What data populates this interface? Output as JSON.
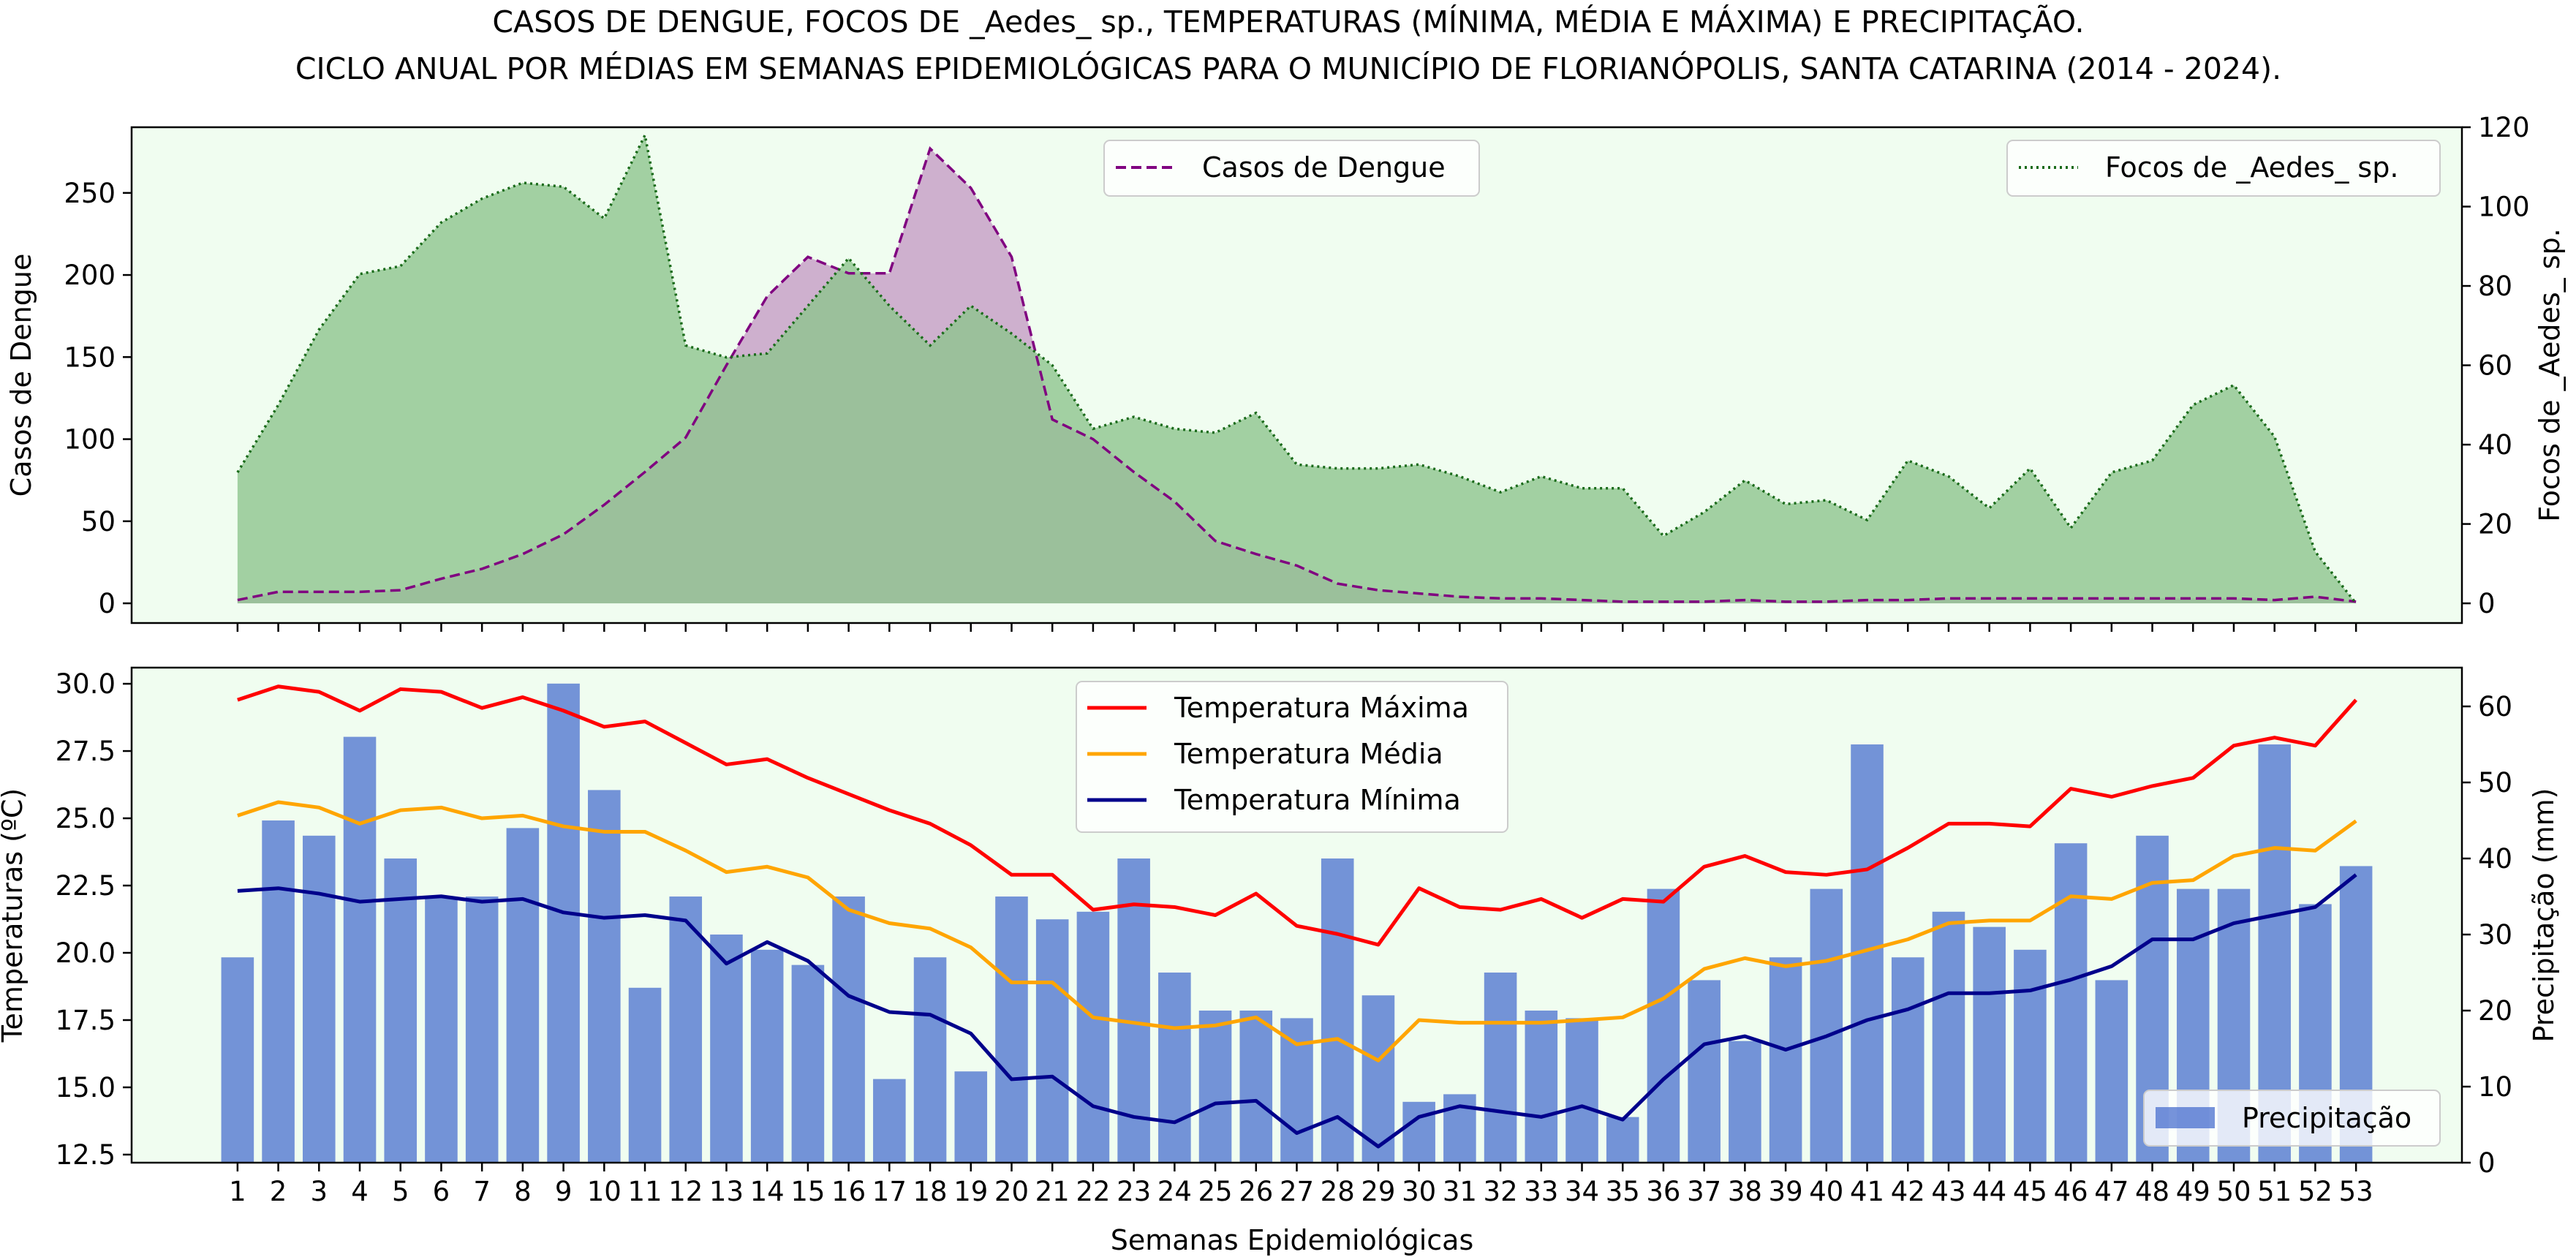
{
  "title_lines": [
    "CASOS DE DENGUE, FOCOS DE _Aedes_ sp., TEMPERATURAS (MÍNIMA, MÉDIA E MÁXIMA) E PRECIPITAÇÃO.",
    "CICLO ANUAL POR MÉDIAS EM SEMANAS EPIDEMIOLÓGICAS PARA O MUNICÍPIO DE FLORIANÓPOLIS, SANTA CATARINA (2014 - 2024)."
  ],
  "colors": {
    "panel_bg": "#f0fdf0",
    "dengue": "#800080",
    "dengue_fill": "#c8a2c8",
    "aedes": "#1a6b1a",
    "aedes_fill": "#8fc48f",
    "tmax": "#ff0000",
    "tmed": "#ffa500",
    "tmin": "#00008b",
    "precip": "#4a6fcf"
  },
  "chart_data": [
    {
      "type": "area",
      "xlabel": "",
      "ylabel": "Casos de Dengue",
      "y2label": "Focos de _Aedes_ sp.",
      "ylim": [
        -12,
        290
      ],
      "y2lim": [
        -4.96,
        120
      ],
      "yticks": [
        0,
        50,
        100,
        150,
        200,
        250
      ],
      "y2ticks": [
        0,
        20,
        40,
        60,
        80,
        100,
        120
      ],
      "x": [
        1,
        2,
        3,
        4,
        5,
        6,
        7,
        8,
        9,
        10,
        11,
        12,
        13,
        14,
        15,
        16,
        17,
        18,
        19,
        20,
        21,
        22,
        23,
        24,
        25,
        26,
        27,
        28,
        29,
        30,
        31,
        32,
        33,
        34,
        35,
        36,
        37,
        38,
        39,
        40,
        41,
        42,
        43,
        44,
        45,
        46,
        47,
        48,
        49,
        50,
        51,
        52,
        53
      ],
      "series": [
        {
          "name": "Casos de Dengue",
          "axis": "left",
          "style": "dashed",
          "values": [
            2,
            7,
            7,
            7,
            8,
            15,
            21,
            30,
            42,
            60,
            80,
            101,
            145,
            187,
            211,
            201,
            201,
            277,
            253,
            211,
            112,
            100,
            80,
            62,
            38,
            30,
            23,
            12,
            8,
            6,
            4,
            3,
            3,
            2,
            1,
            1,
            1,
            2,
            1,
            1,
            2,
            2,
            3,
            3,
            3,
            3,
            3,
            3,
            3,
            3,
            2,
            4,
            1
          ]
        },
        {
          "name": "Focos de _Aedes_ sp.",
          "axis": "right",
          "style": "dotted",
          "values": [
            33,
            50,
            69,
            83,
            85,
            96,
            102,
            106,
            105,
            97,
            118,
            65,
            62,
            63,
            75,
            87,
            75,
            65,
            75,
            68,
            60,
            44,
            47,
            44,
            43,
            48,
            35,
            34,
            34,
            35,
            32,
            28,
            32,
            29,
            29,
            17,
            23,
            31,
            25,
            26,
            21,
            36,
            32,
            24,
            34,
            19,
            33,
            36,
            50,
            55,
            42,
            13,
            0
          ]
        }
      ],
      "legend": [
        {
          "label": "Casos de Dengue",
          "placement": "top-center"
        },
        {
          "label": "Focos de _Aedes_ sp.",
          "placement": "top-right"
        }
      ]
    },
    {
      "type": "bar",
      "xlabel": "Semanas Epidemiológicas",
      "ylabel": "Temperaturas (ºC)",
      "y2label": "Precipitação (mm)",
      "ylim": [
        12.2,
        30.6
      ],
      "y2lim": [
        0,
        65.1
      ],
      "yticks": [
        12.5,
        15.0,
        17.5,
        20.0,
        22.5,
        25.0,
        27.5,
        30.0
      ],
      "y2ticks": [
        0,
        10,
        20,
        30,
        40,
        50,
        60
      ],
      "x": [
        1,
        2,
        3,
        4,
        5,
        6,
        7,
        8,
        9,
        10,
        11,
        12,
        13,
        14,
        15,
        16,
        17,
        18,
        19,
        20,
        21,
        22,
        23,
        24,
        25,
        26,
        27,
        28,
        29,
        30,
        31,
        32,
        33,
        34,
        35,
        36,
        37,
        38,
        39,
        40,
        41,
        42,
        43,
        44,
        45,
        46,
        47,
        48,
        49,
        50,
        51,
        52,
        53
      ],
      "series": [
        {
          "name": "Precipitação",
          "axis": "right",
          "type": "bar",
          "values": [
            27,
            45,
            43,
            56,
            40,
            35,
            35,
            44,
            63,
            49,
            23,
            35,
            30,
            28,
            26,
            35,
            11,
            27,
            12,
            35,
            32,
            33,
            40,
            25,
            20,
            20,
            19,
            40,
            22,
            8,
            9,
            25,
            20,
            19,
            6,
            36,
            24,
            16,
            27,
            36,
            55,
            27,
            33,
            31,
            28,
            42,
            24,
            43,
            36,
            36,
            55,
            34,
            39
          ]
        },
        {
          "name": "Temperatura Máxima",
          "axis": "left",
          "type": "line",
          "values": [
            29.4,
            29.9,
            29.7,
            29.0,
            29.8,
            29.7,
            29.1,
            29.5,
            29.0,
            28.4,
            28.6,
            27.8,
            27.0,
            27.2,
            26.5,
            25.9,
            25.3,
            24.8,
            24.0,
            22.9,
            22.9,
            21.6,
            21.8,
            21.7,
            21.4,
            22.2,
            21.0,
            20.7,
            20.3,
            22.4,
            21.7,
            21.6,
            22.0,
            21.3,
            22.0,
            21.9,
            23.2,
            23.6,
            23.0,
            22.9,
            23.1,
            23.9,
            24.8,
            24.8,
            24.7,
            26.1,
            25.8,
            26.2,
            26.5,
            27.7,
            28.0,
            27.7,
            29.4
          ]
        },
        {
          "name": "Temperatura Média",
          "axis": "left",
          "type": "line",
          "values": [
            25.1,
            25.6,
            25.4,
            24.8,
            25.3,
            25.4,
            25.0,
            25.1,
            24.7,
            24.5,
            24.5,
            23.8,
            23.0,
            23.2,
            22.8,
            21.6,
            21.1,
            20.9,
            20.2,
            18.9,
            18.9,
            17.6,
            17.4,
            17.2,
            17.3,
            17.6,
            16.6,
            16.8,
            16.0,
            17.5,
            17.4,
            17.4,
            17.4,
            17.5,
            17.6,
            18.3,
            19.4,
            19.8,
            19.5,
            19.7,
            20.1,
            20.5,
            21.1,
            21.2,
            21.2,
            22.1,
            22.0,
            22.6,
            22.7,
            23.6,
            23.9,
            23.8,
            24.9
          ]
        },
        {
          "name": "Temperatura Mínima",
          "axis": "left",
          "type": "line",
          "values": [
            22.3,
            22.4,
            22.2,
            21.9,
            22.0,
            22.1,
            21.9,
            22.0,
            21.5,
            21.3,
            21.4,
            21.2,
            19.6,
            20.4,
            19.7,
            18.4,
            17.8,
            17.7,
            17.0,
            15.3,
            15.4,
            14.3,
            13.9,
            13.7,
            14.4,
            14.5,
            13.3,
            13.9,
            12.8,
            13.9,
            14.3,
            14.1,
            13.9,
            14.3,
            13.8,
            15.3,
            16.6,
            16.9,
            16.4,
            16.9,
            17.5,
            17.9,
            18.5,
            18.5,
            18.6,
            19.0,
            19.5,
            20.5,
            20.5,
            21.1,
            21.4,
            21.7,
            22.9
          ]
        }
      ],
      "legend": [
        {
          "label": "Temperatura Máxima",
          "placement": "top-center"
        },
        {
          "label": "Temperatura Média",
          "placement": "top-center"
        },
        {
          "label": "Temperatura Mínima",
          "placement": "top-center"
        },
        {
          "label": "Precipitação",
          "placement": "bottom-right"
        }
      ]
    }
  ]
}
